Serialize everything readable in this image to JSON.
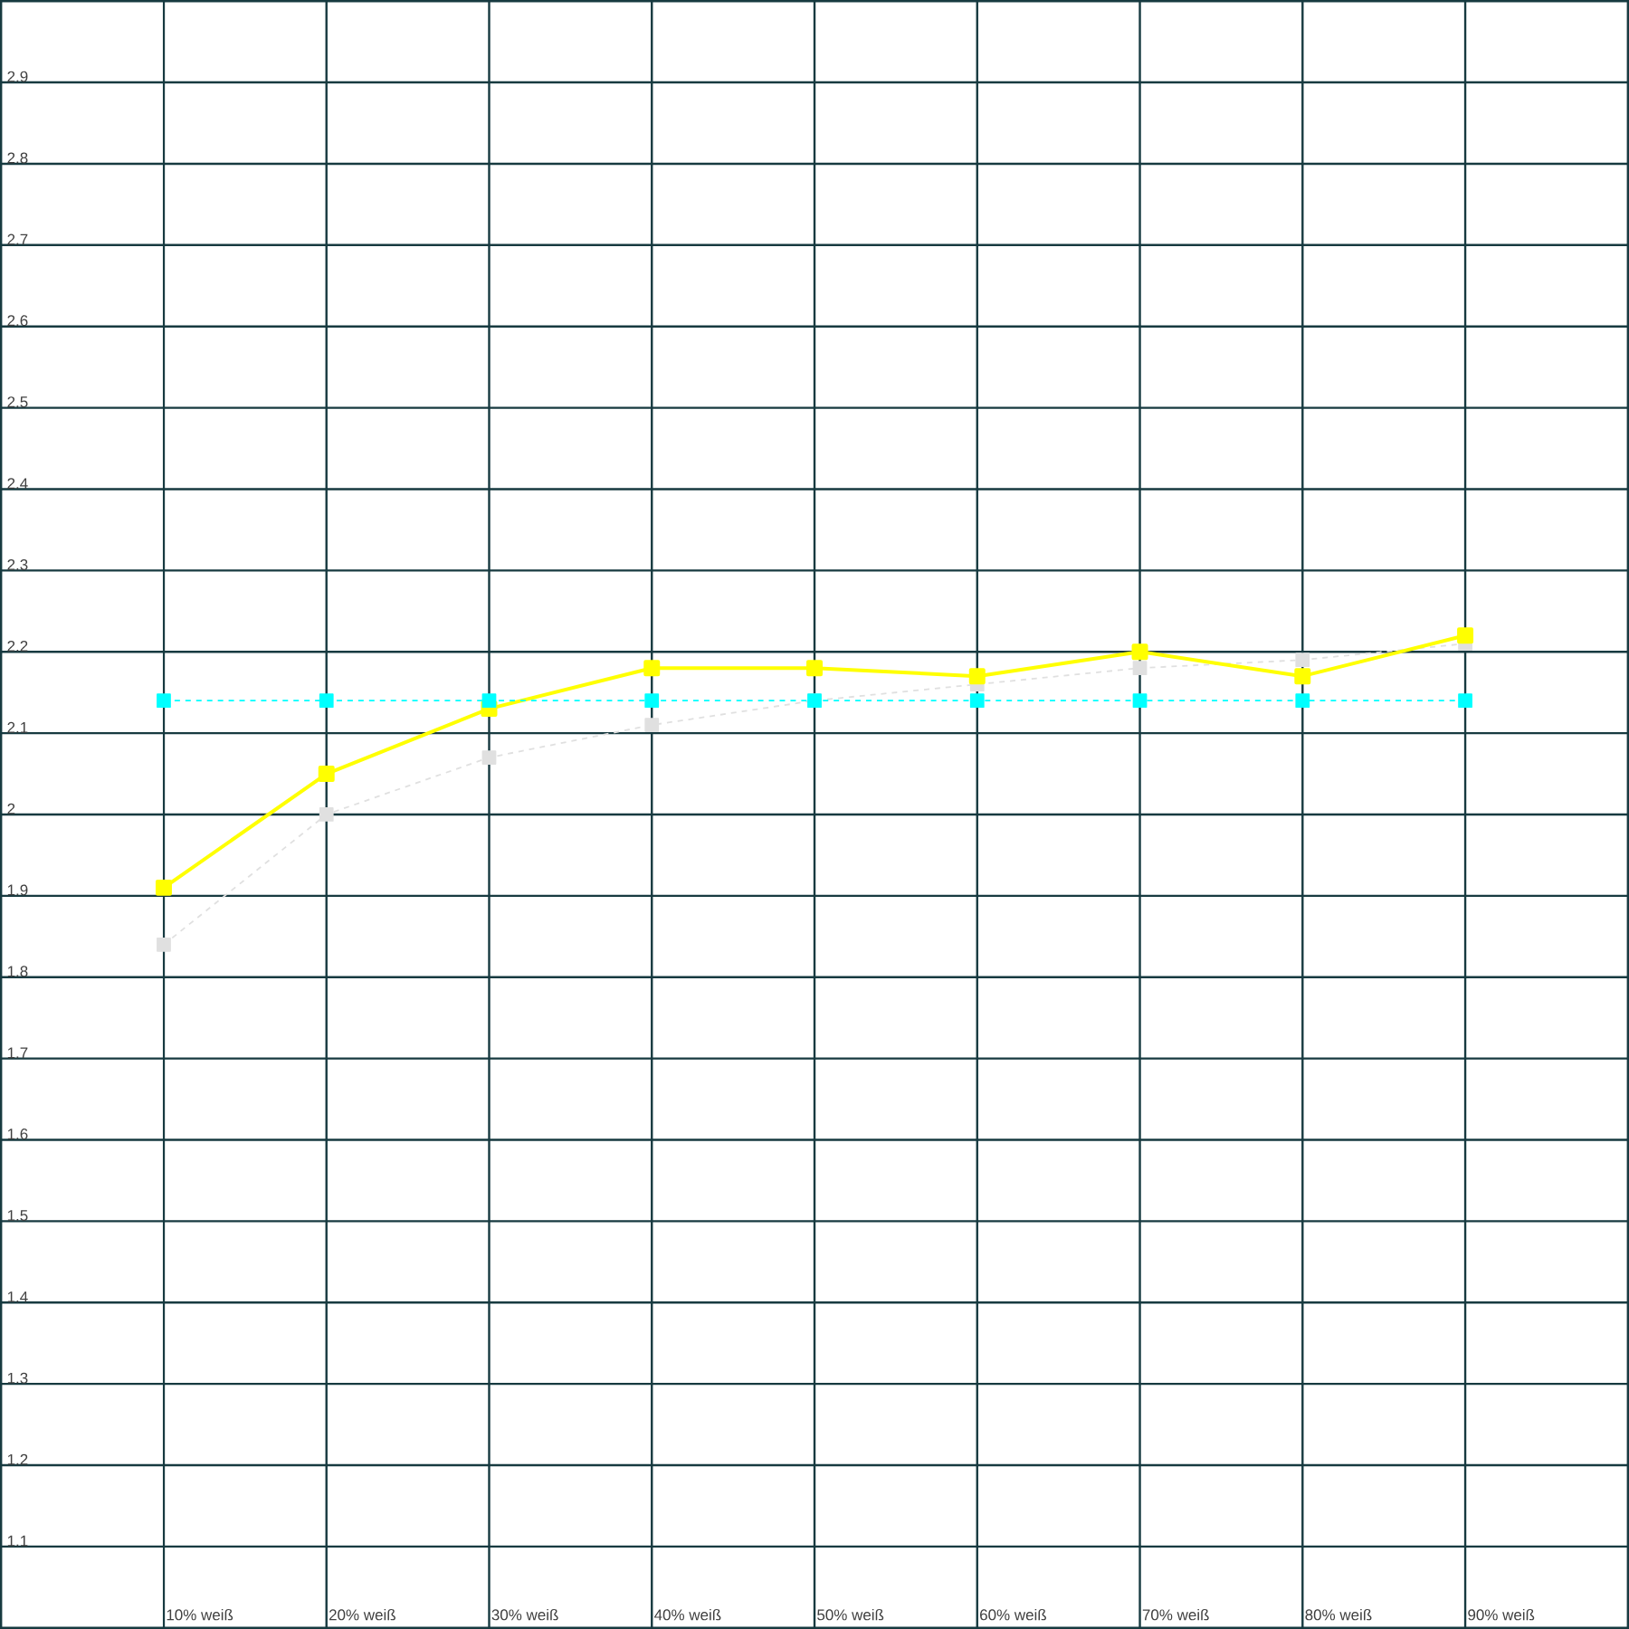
{
  "chart_data": {
    "type": "line",
    "categories": [
      "10% weiß",
      "20% weiß",
      "30% weiß",
      "40% weiß",
      "50% weiß",
      "60% weiß",
      "70% weiß",
      "80% weiß",
      "90% weiß"
    ],
    "series": [
      {
        "color": "#e0e0e0",
        "line_style": "dashed",
        "values": [
          1.84,
          2.0,
          2.07,
          2.11,
          2.14,
          2.16,
          2.18,
          2.19,
          2.21
        ]
      },
      {
        "color": "#ffff00",
        "line_style": "solid",
        "values": [
          1.91,
          2.05,
          2.13,
          2.18,
          2.18,
          2.17,
          2.2,
          2.17,
          2.22
        ]
      },
      {
        "color": "#00ffff",
        "line_style": "dashed",
        "values": [
          2.14,
          2.14,
          2.14,
          2.14,
          2.14,
          2.14,
          2.14,
          2.14,
          2.14
        ]
      }
    ],
    "ylim": [
      1,
      3
    ],
    "yticks": [
      1.1,
      1.2,
      1.3,
      1.4,
      1.5,
      1.6,
      1.7,
      1.8,
      1.9,
      2,
      2.1,
      2.2,
      2.3,
      2.4,
      2.5,
      2.6,
      2.7,
      2.8,
      2.9
    ],
    "grid": true,
    "marker": "square"
  }
}
